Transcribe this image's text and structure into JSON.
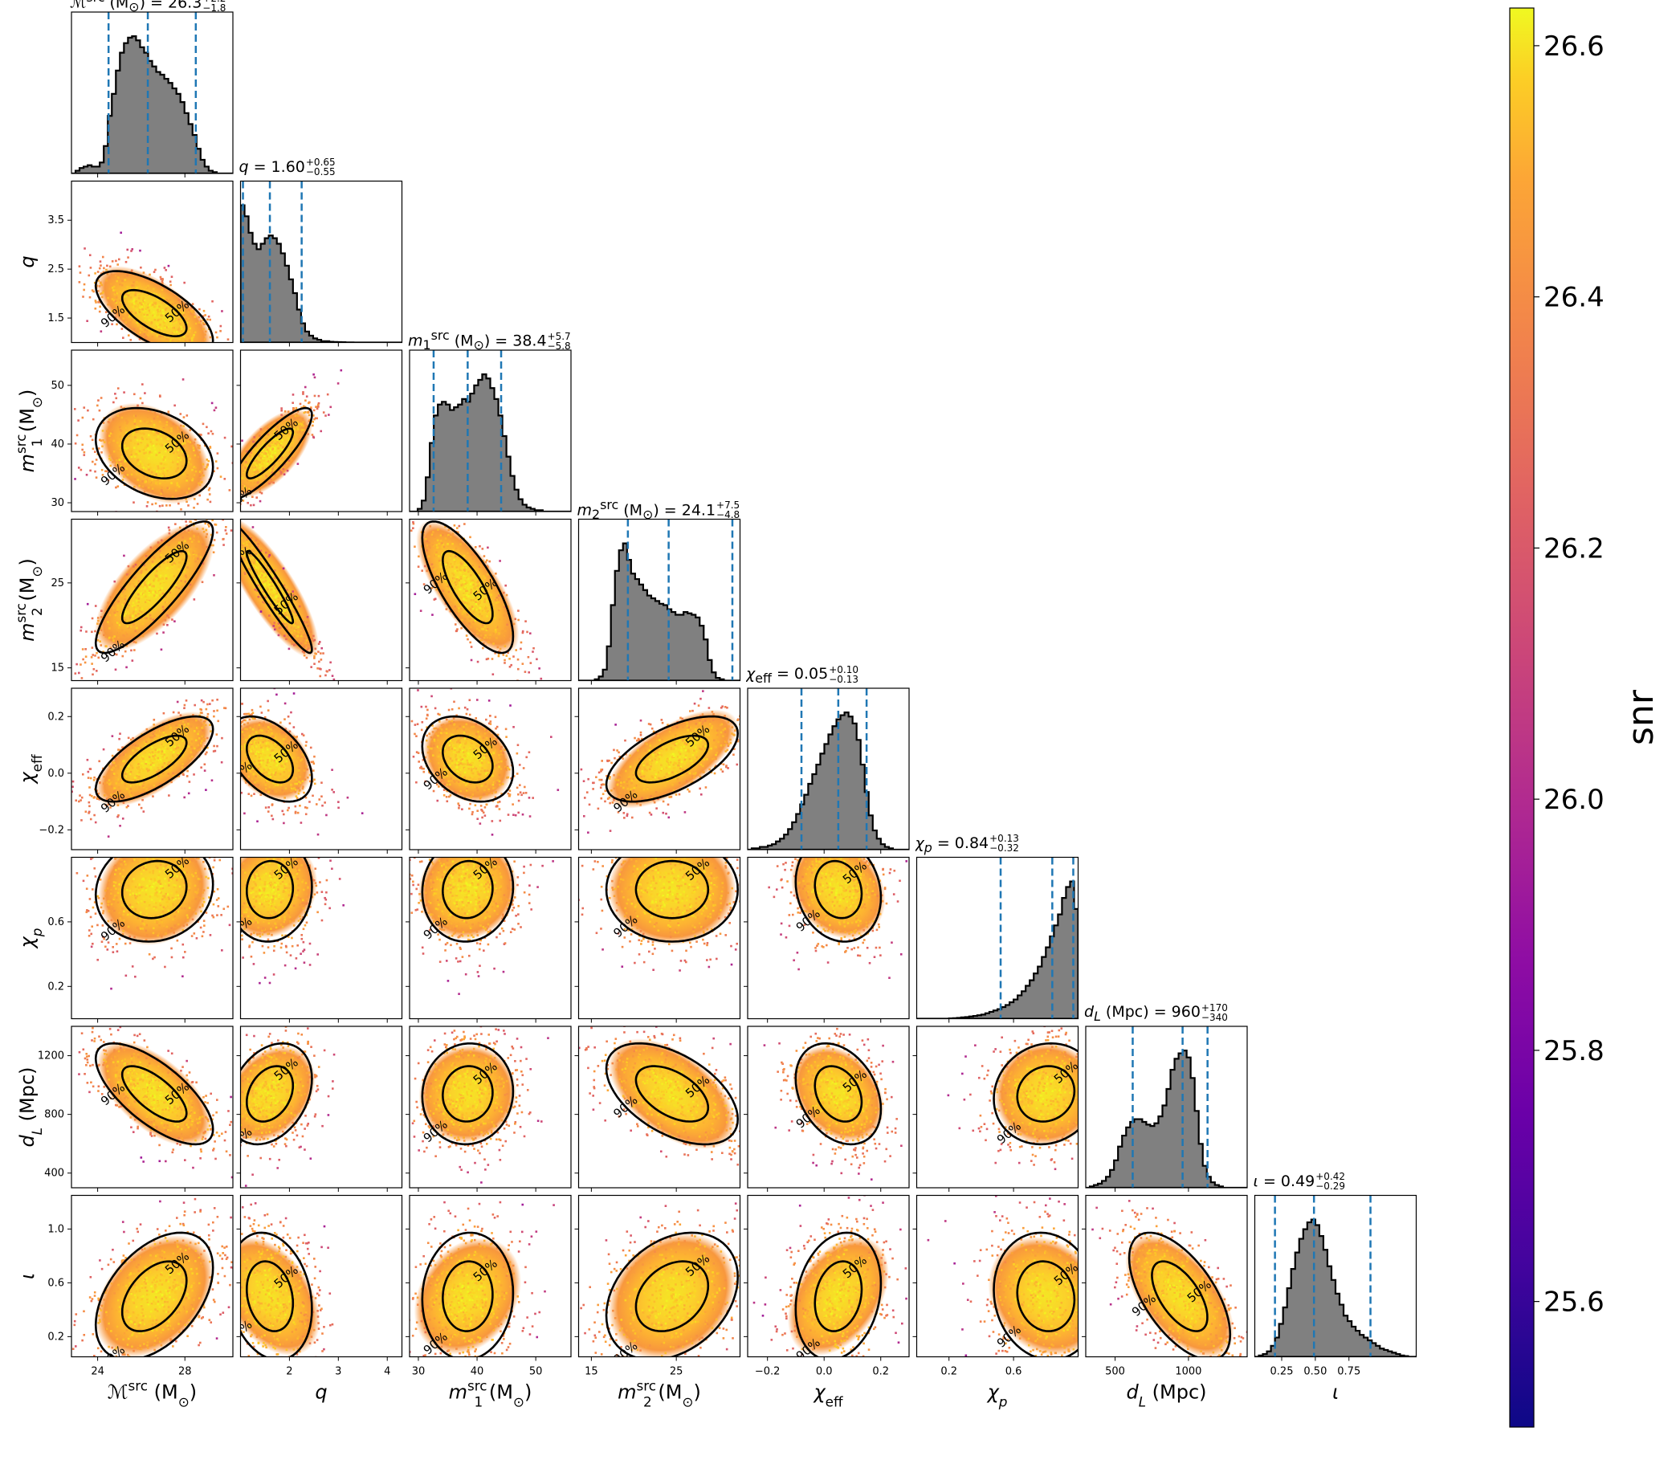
{
  "chart_data": {
    "type": "corner",
    "colormap": "plasma",
    "colors": {
      "hist_fill": "#808080",
      "hist_edge": "#000000",
      "quantile_line": "#1f77b4",
      "contour": "#000000"
    },
    "contour_levels": [
      "50%",
      "90%"
    ],
    "colorbar": {
      "label": "snr",
      "range": [
        25.5,
        26.63
      ],
      "ticks": [
        25.6,
        25.8,
        26.0,
        26.2,
        26.4,
        26.6
      ],
      "tick_labels": [
        "25.6",
        "25.8",
        "26.0",
        "26.2",
        "26.4",
        "26.6"
      ]
    },
    "params": [
      {
        "key": "mchirp",
        "label_html": "<tspan font-style='italic'>ℳ</tspan><tspan font-size='70%' baseline-shift='super'>src</tspan> (M<tspan font-size='70%' baseline-shift='sub'>⊙</tspan>)",
        "title": {
          "name": "ℳ<sup>src</sup> (M<sub>⊙</sub>)",
          "median": "26.3",
          "plus": "+2.2",
          "minus": "−1.8"
        },
        "range": [
          22.8,
          30.2
        ],
        "ticks": [
          24,
          28
        ],
        "tick_labels": [
          "24",
          "28"
        ],
        "median": 26.3,
        "lo": 24.5,
        "hi": 28.5,
        "mean": 26.6,
        "sd": 1.25,
        "hist": [
          0,
          0.02,
          0.04,
          0.05,
          0.06,
          0.05,
          0.05,
          0.08,
          0.2,
          0.42,
          0.58,
          0.75,
          0.88,
          0.95,
          0.99,
          1.0,
          0.97,
          0.92,
          0.88,
          0.82,
          0.78,
          0.74,
          0.72,
          0.69,
          0.66,
          0.62,
          0.58,
          0.52,
          0.44,
          0.36,
          0.28,
          0.18,
          0.1,
          0.05,
          0.02,
          0.01,
          0,
          0,
          0,
          0
        ]
      },
      {
        "key": "q",
        "label_html": "<tspan font-style='italic'>q</tspan>",
        "title": {
          "name": "<i>q</i>",
          "median": "1.60",
          "plus": "+0.65",
          "minus": "−0.55"
        },
        "range": [
          1.0,
          4.3
        ],
        "ticks": [
          2,
          3,
          4
        ],
        "tick_labels": [
          "2",
          "3",
          "4"
        ],
        "y_ticks": [
          1.5,
          2.5,
          3.5
        ],
        "y_tick_labels": [
          "1.5",
          "2.5",
          "3.5"
        ],
        "median": 1.6,
        "lo": 1.05,
        "hi": 2.25,
        "mean": 1.6,
        "sd": 0.4,
        "hist": [
          1.0,
          0.92,
          0.8,
          0.72,
          0.68,
          0.72,
          0.76,
          0.78,
          0.76,
          0.72,
          0.65,
          0.56,
          0.46,
          0.36,
          0.24,
          0.14,
          0.08,
          0.05,
          0.03,
          0.02,
          0.01,
          0.01,
          0.005,
          0.004,
          0.003,
          0.002,
          0.001,
          0.001,
          0,
          0,
          0,
          0,
          0,
          0,
          0,
          0,
          0,
          0,
          0,
          0
        ]
      },
      {
        "key": "m1",
        "label_html": "<tspan font-style='italic'>m</tspan><tspan font-size='70%' baseline-shift='super'>src</tspan><tspan font-size='70%' baseline-shift='sub' dx='-16'>1</tspan> (M<tspan font-size='70%' baseline-shift='sub'>⊙</tspan>)",
        "title": {
          "name": "<i>m</i><sub>1</sub><sup>src</sup> (M<sub>⊙</sub>)",
          "median": "38.4",
          "plus": "+5.7",
          "minus": "−5.8"
        },
        "range": [
          28.5,
          56
        ],
        "ticks": [
          30,
          40,
          50
        ],
        "tick_labels": [
          "30",
          "40",
          "50"
        ],
        "y_ticks": [
          30,
          40,
          50
        ],
        "y_tick_labels": [
          "30",
          "40",
          "50"
        ],
        "median": 38.4,
        "lo": 32.6,
        "hi": 44.1,
        "mean": 38.4,
        "sd": 3.6,
        "hist": [
          0,
          0,
          0.02,
          0.08,
          0.25,
          0.5,
          0.7,
          0.78,
          0.8,
          0.78,
          0.74,
          0.76,
          0.78,
          0.82,
          0.8,
          0.86,
          0.92,
          0.96,
          1.0,
          0.97,
          0.9,
          0.82,
          0.7,
          0.55,
          0.4,
          0.26,
          0.16,
          0.09,
          0.05,
          0.03,
          0.02,
          0.01,
          0.01,
          0,
          0,
          0,
          0,
          0,
          0,
          0
        ]
      },
      {
        "key": "m2",
        "label_html": "<tspan font-style='italic'>m</tspan><tspan font-size='70%' baseline-shift='super'>src</tspan><tspan font-size='70%' baseline-shift='sub' dx='-16'>2</tspan> (M<tspan font-size='70%' baseline-shift='sub'>⊙</tspan>)",
        "title": {
          "name": "<i>m</i><sub>2</sub><sup>src</sup> (M<sub>⊙</sub>)",
          "median": "24.1",
          "plus": "+7.5",
          "minus": "−4.8"
        },
        "range": [
          13.5,
          32.5
        ],
        "ticks": [
          15,
          25
        ],
        "tick_labels": [
          "15",
          "25"
        ],
        "y_ticks": [
          15,
          25
        ],
        "y_tick_labels": [
          "15",
          "25"
        ],
        "median": 24.1,
        "lo": 19.3,
        "hi": 31.6,
        "mean": 24.5,
        "sd": 3.6,
        "hist": [
          0,
          0,
          0,
          0,
          0.01,
          0.03,
          0.08,
          0.25,
          0.55,
          0.8,
          0.95,
          1.0,
          0.88,
          0.78,
          0.74,
          0.7,
          0.66,
          0.62,
          0.6,
          0.58,
          0.56,
          0.55,
          0.52,
          0.5,
          0.48,
          0.48,
          0.5,
          0.49,
          0.48,
          0.46,
          0.4,
          0.3,
          0.15,
          0.06,
          0.02,
          0.01,
          0,
          0,
          0,
          0
        ]
      },
      {
        "key": "chieff",
        "label_html": "<tspan font-style='italic'>χ</tspan><tspan font-size='70%' baseline-shift='sub'>eff</tspan>",
        "title": {
          "name": "<i>χ</i><sub>eff</sub>",
          "median": "0.05",
          "plus": "+0.10",
          "minus": "−0.13"
        },
        "range": [
          -0.27,
          0.3
        ],
        "ticks": [
          -0.2,
          0.0,
          0.2
        ],
        "tick_labels": [
          "−0.2",
          "0.0",
          "0.2"
        ],
        "y_ticks": [
          -0.2,
          0.0,
          0.2
        ],
        "y_tick_labels": [
          "−0.2",
          "0.0",
          "0.2"
        ],
        "median": 0.05,
        "lo": -0.08,
        "hi": 0.15,
        "mean": 0.05,
        "sd": 0.07,
        "hist": [
          0,
          0.01,
          0.01,
          0.02,
          0.02,
          0.03,
          0.04,
          0.06,
          0.08,
          0.11,
          0.15,
          0.2,
          0.26,
          0.33,
          0.4,
          0.48,
          0.55,
          0.62,
          0.7,
          0.77,
          0.84,
          0.9,
          0.95,
          0.98,
          1.0,
          0.97,
          0.92,
          0.8,
          0.62,
          0.42,
          0.25,
          0.14,
          0.08,
          0.04,
          0.02,
          0.01,
          0,
          0,
          0,
          0
        ]
      },
      {
        "key": "chip",
        "label_html": "<tspan font-style='italic'>χ</tspan><tspan font-size='70%' baseline-shift='sub' font-style='italic'>p</tspan>",
        "title": {
          "name": "<i>χ</i><sub><i>p</i></sub>",
          "median": "0.84",
          "plus": "+0.13",
          "minus": "−0.32"
        },
        "range": [
          0.0,
          1.0
        ],
        "ticks": [
          0.2,
          0.6
        ],
        "tick_labels": [
          "0.2",
          "0.6"
        ],
        "y_ticks": [
          0.2,
          0.6
        ],
        "y_tick_labels": [
          "0.2",
          "0.6"
        ],
        "median": 0.84,
        "lo": 0.52,
        "hi": 0.97,
        "mean": 0.8,
        "sd": 0.15,
        "hist": [
          0,
          0,
          0,
          0,
          0,
          0,
          0,
          0,
          0.002,
          0.004,
          0.006,
          0.01,
          0.012,
          0.016,
          0.02,
          0.025,
          0.03,
          0.04,
          0.05,
          0.06,
          0.07,
          0.085,
          0.1,
          0.12,
          0.14,
          0.17,
          0.2,
          0.24,
          0.28,
          0.33,
          0.38,
          0.45,
          0.52,
          0.6,
          0.68,
          0.76,
          0.88,
          0.96,
          1.0,
          0.8
        ]
      },
      {
        "key": "dl",
        "label_html": "<tspan font-style='italic'>d</tspan><tspan font-size='70%' baseline-shift='sub' font-style='italic'>L</tspan> (Mpc)",
        "title": {
          "name": "<i>d</i><sub><i>L</i></sub> (Mpc)",
          "median": "960",
          "plus": "+170",
          "minus": "−340"
        },
        "range": [
          300,
          1400
        ],
        "ticks": [
          500,
          1000
        ],
        "tick_labels": [
          "500",
          "1000"
        ],
        "y_ticks": [
          400,
          800,
          1200
        ],
        "y_tick_labels": [
          "400",
          "800",
          "1200"
        ],
        "median": 960,
        "lo": 620,
        "hi": 1130,
        "mean": 940,
        "sd": 160,
        "hist": [
          0,
          0.01,
          0.02,
          0.03,
          0.05,
          0.08,
          0.13,
          0.2,
          0.3,
          0.38,
          0.44,
          0.48,
          0.5,
          0.5,
          0.48,
          0.46,
          0.45,
          0.47,
          0.52,
          0.6,
          0.72,
          0.86,
          0.94,
          0.98,
          1.0,
          0.95,
          0.8,
          0.56,
          0.32,
          0.16,
          0.08,
          0.04,
          0.02,
          0.01,
          0,
          0,
          0,
          0,
          0,
          0
        ]
      },
      {
        "key": "iota",
        "label_html": "<tspan font-style='italic'>ι</tspan>",
        "title": {
          "name": "<i>ι</i>",
          "median": "0.49",
          "plus": "+0.42",
          "minus": "−0.29"
        },
        "range": [
          0.05,
          1.25
        ],
        "ticks": [
          0.25,
          0.5,
          0.75
        ],
        "tick_labels": [
          "0.25",
          "0.50",
          "0.75"
        ],
        "y_ticks": [
          0.2,
          0.6,
          1.0
        ],
        "y_tick_labels": [
          "0.2",
          "0.6",
          "1.0"
        ],
        "median": 0.49,
        "lo": 0.2,
        "hi": 0.91,
        "mean": 0.5,
        "sd": 0.22,
        "hist": [
          0,
          0.01,
          0.02,
          0.04,
          0.08,
          0.14,
          0.24,
          0.36,
          0.5,
          0.64,
          0.76,
          0.86,
          0.93,
          0.98,
          1.0,
          0.96,
          0.88,
          0.78,
          0.66,
          0.56,
          0.46,
          0.38,
          0.3,
          0.26,
          0.22,
          0.19,
          0.16,
          0.14,
          0.12,
          0.1,
          0.08,
          0.06,
          0.05,
          0.04,
          0.03,
          0.02,
          0.01,
          0.005,
          0,
          0
        ]
      }
    ],
    "correlations": [
      [
        0,
        0,
        0,
        0,
        0,
        0,
        0,
        0
      ],
      [
        -0.65,
        0,
        0,
        0,
        0,
        0,
        0,
        0
      ],
      [
        -0.3,
        0.85,
        0,
        0,
        0,
        0,
        0,
        0
      ],
      [
        0.85,
        -0.95,
        -0.75,
        0,
        0,
        0,
        0,
        0
      ],
      [
        0.7,
        -0.45,
        -0.3,
        0.6,
        0,
        0,
        0,
        0
      ],
      [
        0.1,
        0.05,
        0.05,
        0.0,
        -0.15,
        0,
        0,
        0
      ],
      [
        -0.7,
        0.3,
        0.05,
        -0.5,
        -0.3,
        0.1,
        0,
        0
      ],
      [
        0.45,
        -0.2,
        0.05,
        0.3,
        0.2,
        -0.1,
        -0.6,
        0
      ]
    ]
  }
}
